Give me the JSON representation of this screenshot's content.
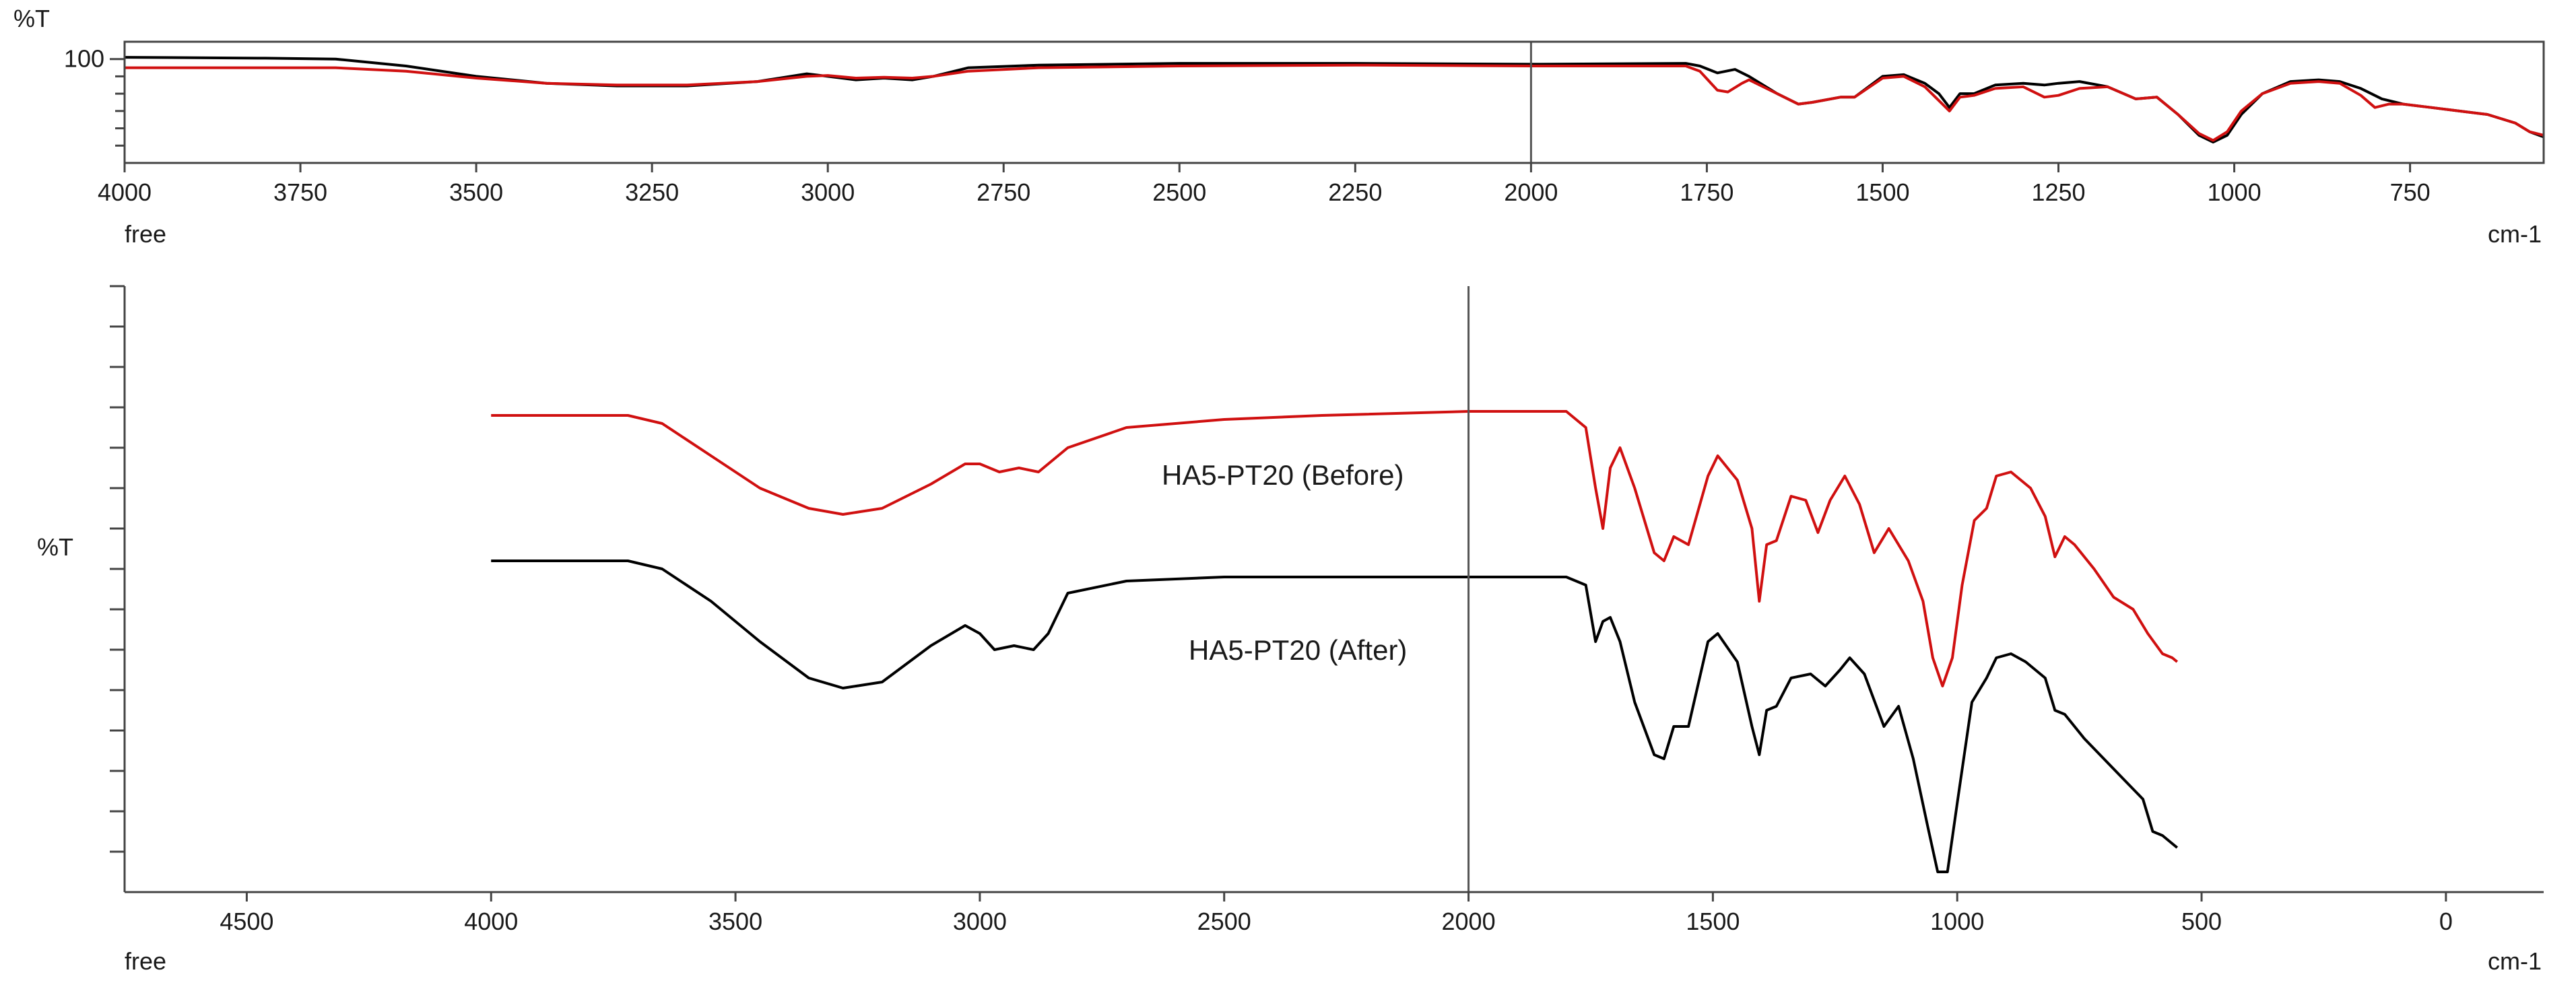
{
  "chart_data": [
    {
      "type": "line",
      "name": "overview-spectrum",
      "ylabel": "%T",
      "xunit": "cm-1",
      "xlabel": "free",
      "xlim": [
        4000,
        560
      ],
      "ylim": [
        40,
        110
      ],
      "y_ticks": [
        100
      ],
      "x_ticks": [
        4000,
        3750,
        3500,
        3250,
        3000,
        2750,
        2500,
        2250,
        2000,
        1750,
        1500,
        1250,
        1000,
        750
      ],
      "cursor_x": 2000,
      "series": [
        {
          "name": "after",
          "color": "#000000",
          "points": [
            [
              4000,
              101
            ],
            [
              3800,
              100.5
            ],
            [
              3700,
              100
            ],
            [
              3600,
              96
            ],
            [
              3500,
              90
            ],
            [
              3400,
              86
            ],
            [
              3300,
              84.5
            ],
            [
              3200,
              84.5
            ],
            [
              3100,
              87
            ],
            [
              3030,
              91.5
            ],
            [
              3000,
              90
            ],
            [
              2960,
              88
            ],
            [
              2920,
              89
            ],
            [
              2880,
              88
            ],
            [
              2850,
              90
            ],
            [
              2800,
              95
            ],
            [
              2700,
              96.5
            ],
            [
              2500,
              97.5
            ],
            [
              2250,
              97.5
            ],
            [
              2000,
              97
            ],
            [
              1780,
              97.5
            ],
            [
              1760,
              96
            ],
            [
              1735,
              92
            ],
            [
              1710,
              94
            ],
            [
              1690,
              90
            ],
            [
              1650,
              80
            ],
            [
              1620,
              74
            ],
            [
              1600,
              75
            ],
            [
              1560,
              78
            ],
            [
              1540,
              78
            ],
            [
              1500,
              90
            ],
            [
              1470,
              91
            ],
            [
              1440,
              86
            ],
            [
              1420,
              80
            ],
            [
              1405,
              72
            ],
            [
              1390,
              80
            ],
            [
              1370,
              80
            ],
            [
              1340,
              85
            ],
            [
              1300,
              86
            ],
            [
              1270,
              85
            ],
            [
              1250,
              86
            ],
            [
              1220,
              87
            ],
            [
              1180,
              84
            ],
            [
              1140,
              77
            ],
            [
              1110,
              78
            ],
            [
              1080,
              68
            ],
            [
              1050,
              56
            ],
            [
              1030,
              52
            ],
            [
              1010,
              56
            ],
            [
              990,
              68
            ],
            [
              960,
              80
            ],
            [
              920,
              87
            ],
            [
              880,
              88
            ],
            [
              850,
              87
            ],
            [
              820,
              83
            ],
            [
              790,
              77
            ],
            [
              760,
              74
            ],
            [
              720,
              72
            ],
            [
              680,
              70
            ],
            [
              640,
              68
            ],
            [
              600,
              63
            ],
            [
              580,
              58
            ],
            [
              560,
              55
            ]
          ]
        },
        {
          "name": "before",
          "color": "#d01010",
          "points": [
            [
              4000,
              95
            ],
            [
              3800,
              95
            ],
            [
              3700,
              95
            ],
            [
              3600,
              93
            ],
            [
              3500,
              89
            ],
            [
              3400,
              86
            ],
            [
              3300,
              85
            ],
            [
              3200,
              85
            ],
            [
              3100,
              87
            ],
            [
              3030,
              90
            ],
            [
              3000,
              90.5
            ],
            [
              2960,
              89
            ],
            [
              2920,
              89.5
            ],
            [
              2880,
              89
            ],
            [
              2850,
              90
            ],
            [
              2800,
              93
            ],
            [
              2700,
              95
            ],
            [
              2500,
              96
            ],
            [
              2250,
              96.5
            ],
            [
              2000,
              96
            ],
            [
              1780,
              96
            ],
            [
              1760,
              93
            ],
            [
              1735,
              82
            ],
            [
              1720,
              81
            ],
            [
              1700,
              86
            ],
            [
              1690,
              88
            ],
            [
              1650,
              80
            ],
            [
              1620,
              74
            ],
            [
              1600,
              75
            ],
            [
              1560,
              78
            ],
            [
              1540,
              78
            ],
            [
              1500,
              89
            ],
            [
              1470,
              90
            ],
            [
              1440,
              84
            ],
            [
              1420,
              76
            ],
            [
              1405,
              70
            ],
            [
              1390,
              78
            ],
            [
              1370,
              79
            ],
            [
              1340,
              83
            ],
            [
              1300,
              84
            ],
            [
              1270,
              78
            ],
            [
              1250,
              79
            ],
            [
              1220,
              83
            ],
            [
              1180,
              84
            ],
            [
              1140,
              77
            ],
            [
              1110,
              78
            ],
            [
              1080,
              68
            ],
            [
              1050,
              57
            ],
            [
              1030,
              53
            ],
            [
              1010,
              58
            ],
            [
              990,
              70
            ],
            [
              960,
              80
            ],
            [
              920,
              86
            ],
            [
              880,
              87
            ],
            [
              850,
              86
            ],
            [
              820,
              79
            ],
            [
              800,
              72
            ],
            [
              780,
              74
            ],
            [
              760,
              74
            ],
            [
              720,
              72
            ],
            [
              680,
              70
            ],
            [
              640,
              68
            ],
            [
              600,
              63
            ],
            [
              580,
              58
            ],
            [
              560,
              56
            ]
          ]
        }
      ]
    },
    {
      "type": "line",
      "name": "offset-spectra",
      "ylabel": "%T",
      "xunit": "cm-1",
      "xlabel": "free",
      "xlim": [
        4750,
        -200
      ],
      "ylim": [
        0,
        150
      ],
      "x_ticks": [
        4500,
        4000,
        3500,
        3000,
        2500,
        2000,
        1500,
        1000,
        500,
        0
      ],
      "y_minor_ticks": 15,
      "cursor_x": 2000,
      "series": [
        {
          "name": "HA5-PT20 (Before)",
          "label": "HA5-PT20 (Before)",
          "color": "#d01010",
          "points": [
            [
              4000,
              118
            ],
            [
              3800,
              118
            ],
            [
              3720,
              118
            ],
            [
              3650,
              116
            ],
            [
              3550,
              108
            ],
            [
              3450,
              100
            ],
            [
              3350,
              95
            ],
            [
              3280,
              93.5
            ],
            [
              3200,
              95
            ],
            [
              3100,
              101
            ],
            [
              3030,
              106
            ],
            [
              3000,
              106
            ],
            [
              2960,
              104
            ],
            [
              2920,
              105
            ],
            [
              2880,
              104
            ],
            [
              2860,
              106
            ],
            [
              2820,
              110
            ],
            [
              2700,
              115
            ],
            [
              2500,
              117
            ],
            [
              2300,
              118
            ],
            [
              2000,
              119
            ],
            [
              1800,
              119
            ],
            [
              1760,
              115
            ],
            [
              1740,
              100
            ],
            [
              1725,
              90
            ],
            [
              1710,
              105
            ],
            [
              1690,
              110
            ],
            [
              1660,
              100
            ],
            [
              1620,
              84
            ],
            [
              1600,
              82
            ],
            [
              1580,
              88
            ],
            [
              1550,
              86
            ],
            [
              1510,
              103
            ],
            [
              1490,
              108
            ],
            [
              1450,
              102
            ],
            [
              1420,
              90
            ],
            [
              1405,
              72
            ],
            [
              1390,
              86
            ],
            [
              1370,
              87
            ],
            [
              1340,
              98
            ],
            [
              1310,
              97
            ],
            [
              1285,
              89
            ],
            [
              1260,
              97
            ],
            [
              1230,
              103
            ],
            [
              1200,
              96
            ],
            [
              1170,
              84
            ],
            [
              1140,
              90
            ],
            [
              1100,
              82
            ],
            [
              1070,
              72
            ],
            [
              1050,
              58
            ],
            [
              1030,
              51
            ],
            [
              1010,
              58
            ],
            [
              990,
              76
            ],
            [
              965,
              92
            ],
            [
              940,
              95
            ],
            [
              920,
              103
            ],
            [
              890,
              104
            ],
            [
              850,
              100
            ],
            [
              820,
              93
            ],
            [
              800,
              83
            ],
            [
              780,
              88
            ],
            [
              760,
              86
            ],
            [
              720,
              80
            ],
            [
              680,
              73
            ],
            [
              640,
              70
            ],
            [
              610,
              64
            ],
            [
              580,
              59
            ],
            [
              560,
              58
            ],
            [
              550,
              57
            ]
          ]
        },
        {
          "name": "HA5-PT20  (After)",
          "label": "HA5-PT20  (After)",
          "color": "#000000",
          "points": [
            [
              4000,
              82
            ],
            [
              3800,
              82
            ],
            [
              3720,
              82
            ],
            [
              3650,
              80
            ],
            [
              3550,
              72
            ],
            [
              3450,
              62
            ],
            [
              3350,
              53
            ],
            [
              3280,
              50.5
            ],
            [
              3200,
              52
            ],
            [
              3100,
              61
            ],
            [
              3030,
              66
            ],
            [
              3000,
              64
            ],
            [
              2970,
              60
            ],
            [
              2930,
              61
            ],
            [
              2890,
              60
            ],
            [
              2860,
              64
            ],
            [
              2820,
              74
            ],
            [
              2700,
              77
            ],
            [
              2500,
              78
            ],
            [
              2300,
              78
            ],
            [
              2000,
              78
            ],
            [
              1800,
              78
            ],
            [
              1760,
              76
            ],
            [
              1740,
              62
            ],
            [
              1725,
              67
            ],
            [
              1710,
              68
            ],
            [
              1690,
              62
            ],
            [
              1660,
              47
            ],
            [
              1620,
              34
            ],
            [
              1600,
              33
            ],
            [
              1580,
              41
            ],
            [
              1550,
              41
            ],
            [
              1510,
              62
            ],
            [
              1490,
              64
            ],
            [
              1450,
              57
            ],
            [
              1420,
              41
            ],
            [
              1405,
              34
            ],
            [
              1390,
              45
            ],
            [
              1370,
              46
            ],
            [
              1340,
              53
            ],
            [
              1300,
              54
            ],
            [
              1270,
              51
            ],
            [
              1240,
              55
            ],
            [
              1220,
              58
            ],
            [
              1190,
              54
            ],
            [
              1150,
              41
            ],
            [
              1120,
              46
            ],
            [
              1090,
              33
            ],
            [
              1060,
              16
            ],
            [
              1040,
              5
            ],
            [
              1020,
              5
            ],
            [
              1000,
              22
            ],
            [
              970,
              47
            ],
            [
              940,
              53
            ],
            [
              920,
              58
            ],
            [
              890,
              59
            ],
            [
              860,
              57
            ],
            [
              820,
              53
            ],
            [
              800,
              45
            ],
            [
              780,
              44
            ],
            [
              740,
              38
            ],
            [
              700,
              33
            ],
            [
              660,
              28
            ],
            [
              620,
              23
            ],
            [
              600,
              15
            ],
            [
              580,
              14
            ],
            [
              560,
              12
            ],
            [
              550,
              11
            ]
          ]
        }
      ]
    }
  ]
}
